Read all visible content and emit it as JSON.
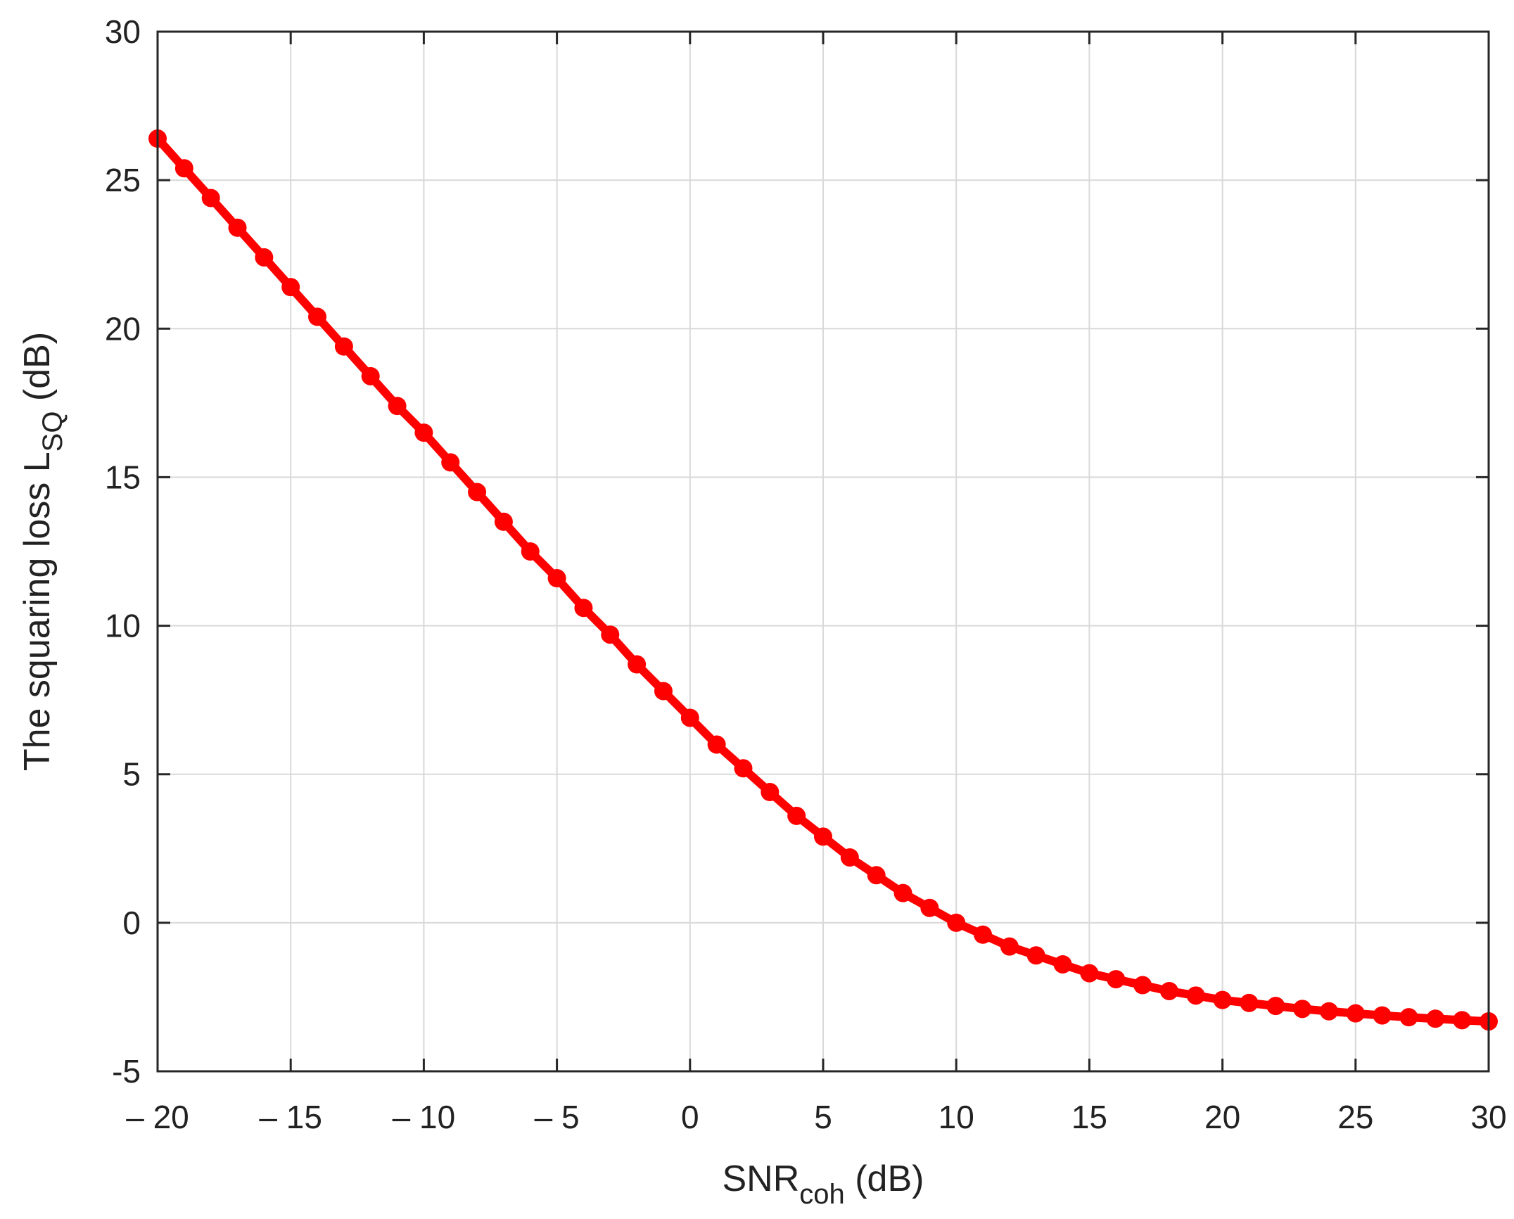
{
  "chart_data": {
    "type": "line",
    "xlabel": {
      "main": "SNR",
      "sub": "coh",
      "tail": " (dB)"
    },
    "ylabel": {
      "main": "The squaring loss L",
      "sub": "SQ",
      "tail": " (dB)"
    },
    "xlim": [
      -20,
      30
    ],
    "ylim": [
      -5,
      30
    ],
    "xticks": [
      -20,
      -15,
      -10,
      -5,
      0,
      5,
      10,
      15,
      20,
      25,
      30
    ],
    "xtick_labels": [
      "– 20",
      "– 15",
      "– 10",
      "– 5",
      "0",
      "5",
      "10",
      "15",
      "20",
      "25",
      "30"
    ],
    "yticks": [
      -5,
      0,
      5,
      10,
      15,
      20,
      25,
      30
    ],
    "ytick_labels": [
      "-5",
      "0",
      "5",
      "10",
      "15",
      "20",
      "25",
      "30"
    ],
    "grid": true,
    "series": [
      {
        "color": "#ff0000",
        "marker": "filled-circle",
        "x": [
          -20,
          -19,
          -18,
          -17,
          -16,
          -15,
          -14,
          -13,
          -12,
          -11,
          -10,
          -9,
          -8,
          -7,
          -6,
          -5,
          -4,
          -3,
          -2,
          -1,
          0,
          1,
          2,
          3,
          4,
          5,
          6,
          7,
          8,
          9,
          10,
          11,
          12,
          13,
          14,
          15,
          16,
          17,
          18,
          19,
          20,
          21,
          22,
          23,
          24,
          25,
          26,
          27,
          28,
          29,
          30
        ],
        "y": [
          26.4,
          25.4,
          24.4,
          23.4,
          22.4,
          21.4,
          20.4,
          19.4,
          18.4,
          17.4,
          16.5,
          15.5,
          14.5,
          13.5,
          12.5,
          11.6,
          10.6,
          9.7,
          8.7,
          7.8,
          6.9,
          6.0,
          5.2,
          4.4,
          3.6,
          2.9,
          2.2,
          1.6,
          1.0,
          0.5,
          0.0,
          -0.4,
          -0.8,
          -1.1,
          -1.4,
          -1.7,
          -1.9,
          -2.1,
          -2.3,
          -2.45,
          -2.6,
          -2.7,
          -2.8,
          -2.9,
          -2.98,
          -3.05,
          -3.12,
          -3.18,
          -3.23,
          -3.28,
          -3.32
        ]
      }
    ]
  }
}
